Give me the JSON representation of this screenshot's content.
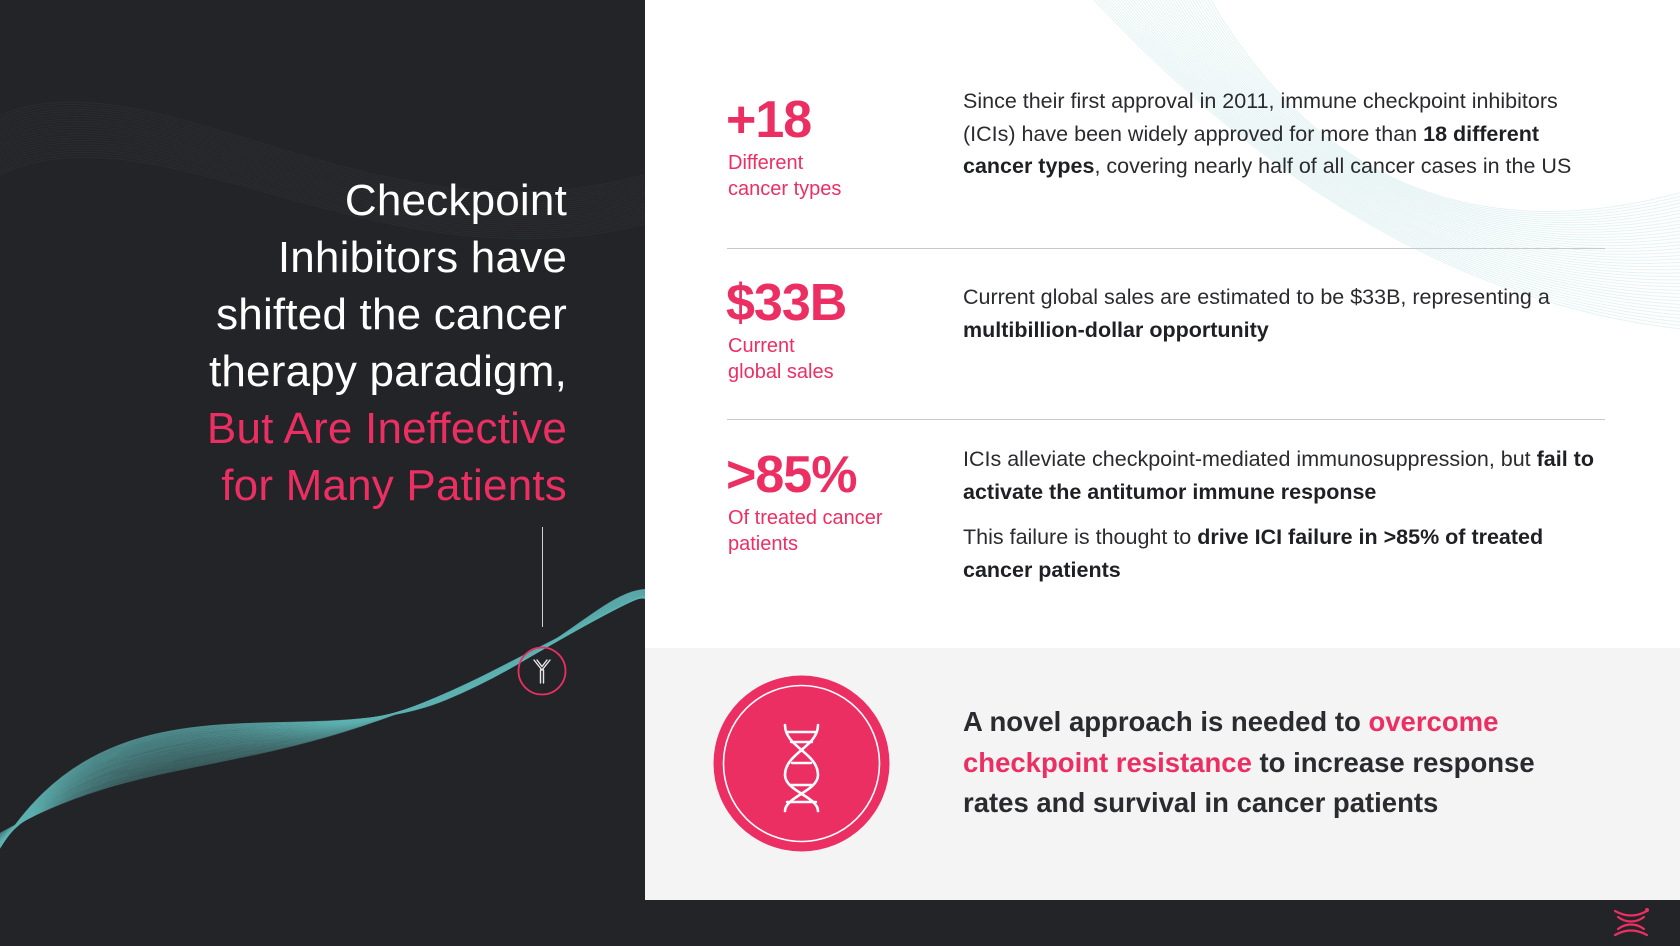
{
  "headline": {
    "line1": "Checkpoint",
    "line2": "Inhibitors have",
    "line3": "shifted the cancer",
    "line4": "therapy paradigm,",
    "accent_line1": "But Are Ineffective",
    "accent_line2": "for Many Patients"
  },
  "stats": [
    {
      "value": "+18",
      "label": "Different\ncancer types",
      "desc": {
        "t1": "Since their first approval in 2011, immune checkpoint inhibitors (ICIs) have been widely approved for more than ",
        "b1": "18 different cancer types",
        "t2": ", covering nearly half of all cancer cases in the US"
      }
    },
    {
      "value": "$33B",
      "label": "Current\nglobal sales",
      "desc": {
        "t1": "Current global sales are estimated to be $33B, representing a ",
        "b1": "multibillion-dollar opportunity"
      }
    },
    {
      "value": ">85%",
      "label": "Of treated cancer\npatients",
      "desc": {
        "t1": "ICIs alleviate checkpoint-mediated immunosuppression, but ",
        "b1": "fail to activate the antitumor immune response",
        "t2": "This failure is thought to ",
        "b2": "drive ICI failure in >85% of treated cancer patients"
      }
    }
  ],
  "callout": {
    "t1": "A novel approach is needed to ",
    "accent": "overcome checkpoint resistance",
    "t2": " to increase response rates and survival in cancer patients"
  },
  "icons": {
    "badge": "antibody-icon",
    "dna": "dna-icon",
    "logo": "brand-logo-icon"
  },
  "colors": {
    "accent": "#ec2f63",
    "dark_bg": "#232427",
    "light_band": "#f4f4f5",
    "wave_teal": "#5fb3b3"
  }
}
